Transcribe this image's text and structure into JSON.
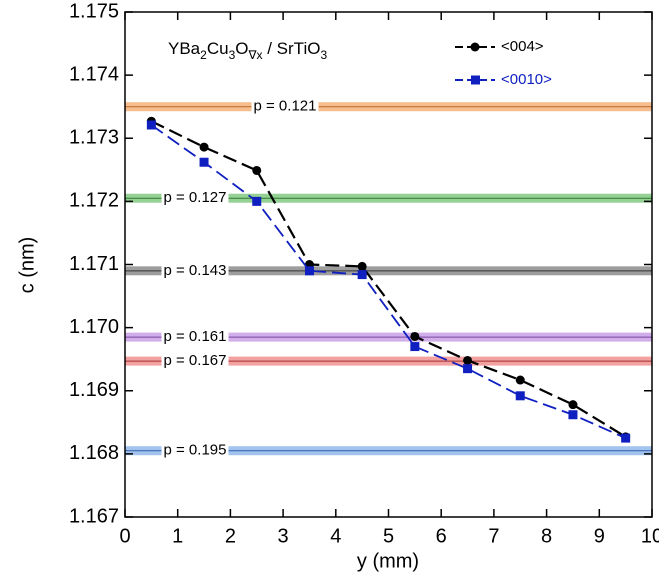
{
  "chart_data": {
    "type": "line",
    "xlabel": "y (mm)",
    "ylabel": "c (nm)",
    "xlim": [
      0,
      10
    ],
    "ylim": [
      1.167,
      1.175
    ],
    "xticks": [
      0,
      1,
      2,
      3,
      4,
      5,
      6,
      7,
      8,
      9,
      10
    ],
    "yticks": [
      1.167,
      1.168,
      1.169,
      {
        "value": 1.17,
        "label": "1.170"
      },
      1.171,
      1.172,
      1.173,
      1.174,
      1.175
    ],
    "annotation": [
      {
        "text": "YBa"
      },
      {
        "text": "2",
        "sub": true
      },
      {
        "text": "Cu"
      },
      {
        "text": "3",
        "sub": true
      },
      {
        "text": "O"
      },
      {
        "text": "∇x",
        "sub": true
      },
      {
        "text": " / SrTiO"
      },
      {
        "text": "3",
        "sub": true
      }
    ],
    "hlines": [
      {
        "label": "p = 0.121",
        "value": 1.1735,
        "color": "#f5b27a",
        "line_color": "#b86a2a"
      },
      {
        "label": "p = 0.127",
        "value": 1.17205,
        "color": "#83c983",
        "line_color": "#2f7a2f"
      },
      {
        "label": "p = 0.143",
        "value": 1.1709,
        "color": "#8c8c8c",
        "line_color": "#333333"
      },
      {
        "label": "p = 0.161",
        "value": 1.16985,
        "color": "#c9a0e8",
        "line_color": "#7a45a0"
      },
      {
        "label": "p = 0.167",
        "value": 1.16947,
        "color": "#f29090",
        "line_color": "#a03030"
      },
      {
        "label": "p = 0.195",
        "value": 1.16805,
        "color": "#92b8ec",
        "line_color": "#3060a8"
      }
    ],
    "legend": "upper right",
    "x": [
      0.5,
      1.5,
      2.5,
      3.5,
      4.5,
      5.5,
      6.5,
      7.5,
      8.5,
      9.5
    ],
    "series": [
      {
        "name": "<004>",
        "color": "#000000",
        "marker": "circle",
        "values": [
          1.17327,
          1.17286,
          1.17249,
          1.171,
          1.17097,
          1.16986,
          1.16948,
          1.16917,
          1.16878,
          1.16827
        ]
      },
      {
        "name": "<0010>",
        "color": "#1020c0",
        "marker": "square",
        "values": [
          1.17321,
          1.17262,
          1.172,
          1.1709,
          1.17084,
          1.1697,
          1.16935,
          1.16892,
          1.16862,
          1.16825
        ]
      }
    ]
  }
}
